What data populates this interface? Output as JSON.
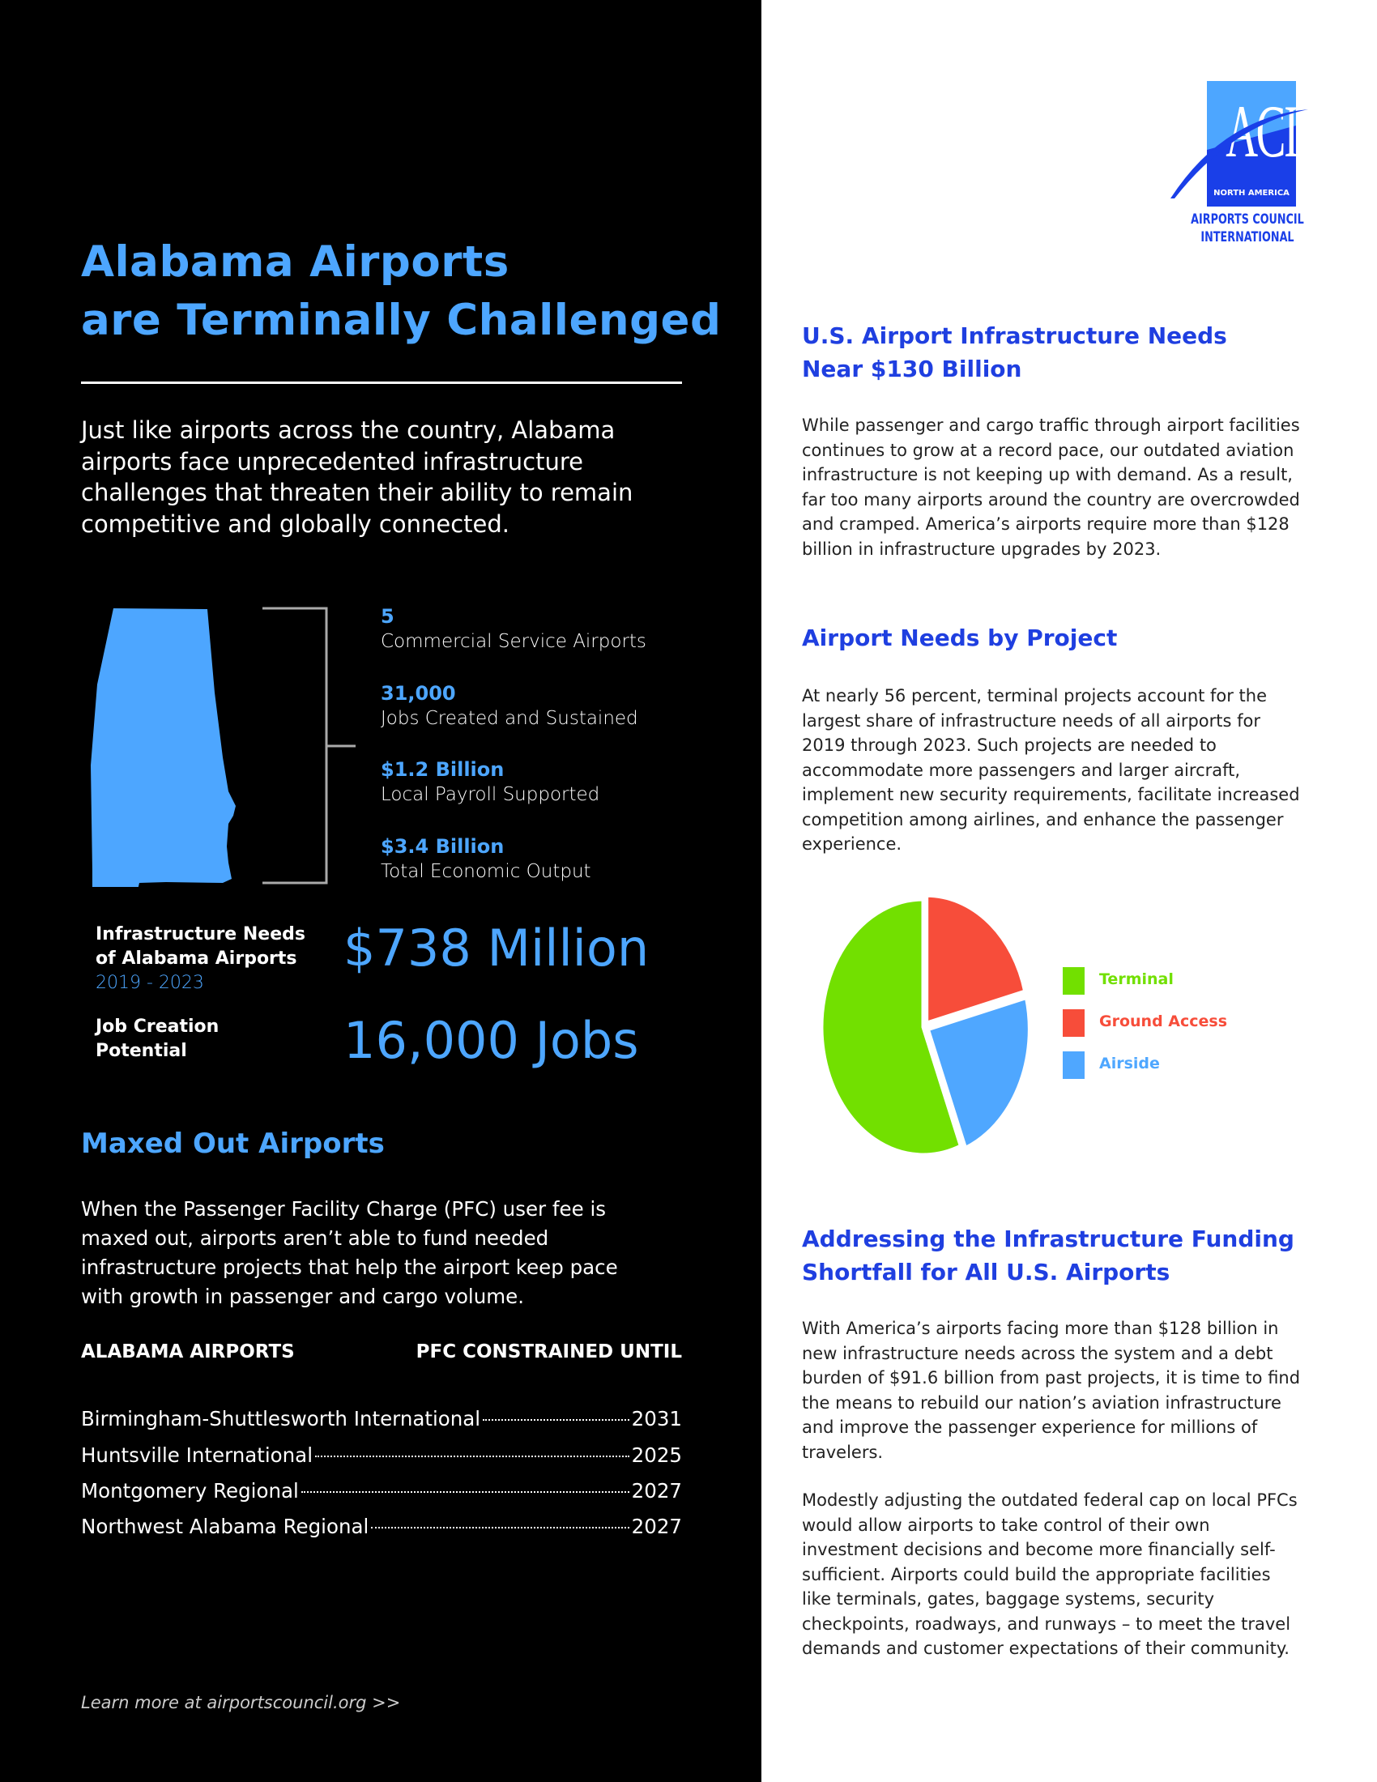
{
  "left": {
    "title_line1": "Alabama Airports",
    "title_line2": "are Terminally Challenged",
    "intro": "Just like airports across the country, Alabama airports face unprecedented infrastructure challenges that threaten their ability to remain competitive and globally connected.",
    "stats": [
      {
        "value": "5",
        "label": "Commercial Service Airports"
      },
      {
        "value": "31,000",
        "label": "Jobs Created and Sustained"
      },
      {
        "value": "$1.2 Billion",
        "label": "Local Payroll Supported"
      },
      {
        "value": "$3.4 Billion",
        "label": "Total Economic Output"
      }
    ],
    "infra_label_1": "Infrastructure Needs",
    "infra_label_2": "of Alabama Airports",
    "infra_years": "2019 - 2023",
    "infra_value": "$738 Million",
    "jobs_label_1": "Job Creation",
    "jobs_label_2": "Potential",
    "jobs_value": "16,000 Jobs",
    "maxed_heading": "Maxed Out Airports",
    "maxed_para": "When the Passenger Facility Charge (PFC) user fee is maxed out, airports aren’t able to fund needed infrastructure projects that help the airport keep pace with growth in passenger and cargo volume.",
    "table": {
      "headers": [
        "ALABAMA AIRPORTS",
        "PFC CONSTRAINED UNTIL"
      ],
      "rows": [
        {
          "airport": "Birmingham-Shuttlesworth International",
          "year": "2031"
        },
        {
          "airport": "Huntsville International",
          "year": "2025"
        },
        {
          "airport": "Montgomery Regional",
          "year": "2027"
        },
        {
          "airport": "Northwest Alabama Regional",
          "year": "2027"
        }
      ]
    },
    "footer": "Learn more at airportscouncil.org >>"
  },
  "logo": {
    "letters": "ACI",
    "sub": "NORTH AMERICA",
    "name_1": "AIRPORTS COUNCIL",
    "name_2": "INTERNATIONAL"
  },
  "right": {
    "h1_line1": "U.S. Airport Infrastructure Needs",
    "h1_line2": "Near $130 Billion",
    "p1": "While passenger and cargo traffic through airport facilities continues to grow at a record pace, our outdated aviation infrastructure is not keeping up with demand. As a result, far too many airports around the country are overcrowded and cramped. America’s airports require more than $128 billion in infrastructure upgrades by 2023.",
    "h2": "Airport Needs by Project",
    "p2": "At nearly 56 percent, terminal projects account for the largest share of infrastructure needs of all airports for 2019 through 2023. Such projects are needed to accommodate more passengers and larger aircraft, implement new security requirements, facilitate increased competition among airlines, and enhance the passenger experience.",
    "h3_line1": "Addressing the Infrastructure Funding",
    "h3_line2": "Shortfall for All U.S. Airports",
    "p3": "With America’s airports facing more than $128 billion in new infrastructure needs across the system and a debt burden of $91.6 billion from past projects, it is time to find the means to rebuild our nation’s aviation infrastructure and improve the passenger experience for millions of travelers.",
    "p4": "Modestly adjusting the outdated federal cap on local PFCs would allow airports to take control of their own investment decisions and become more financially self-sufficient. Airports could build the appropriate facilities like terminals, gates, baggage systems, security checkpoints, roadways, and runways – to meet the travel demands and customer expectations of their community."
  },
  "chart_data": {
    "type": "pie",
    "categories": [
      "Terminal",
      "Ground Access",
      "Airside"
    ],
    "values": [
      56,
      21,
      23
    ],
    "colors": [
      "#72e000",
      "#f74d3a",
      "#4fa7ff"
    ],
    "legend": "right"
  },
  "colors": {
    "accent_light_blue": "#4da6ff",
    "heading_blue": "#1f3fe0",
    "left_bg": "#000000"
  }
}
